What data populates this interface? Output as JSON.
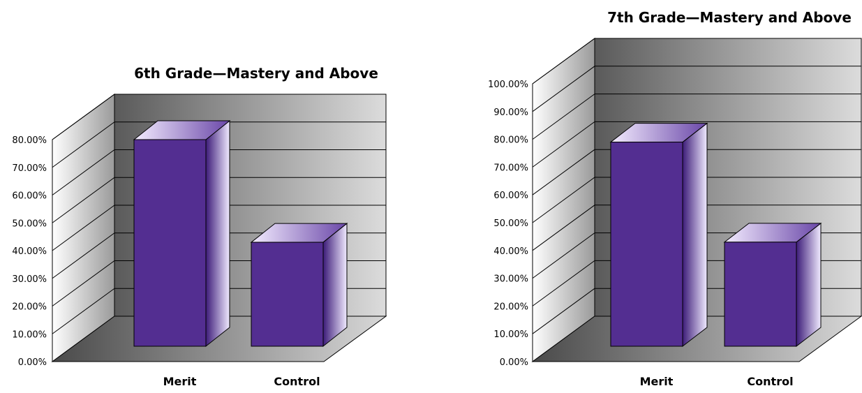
{
  "colors": {
    "bar_front": "#532e91",
    "bar_top_light": "#f3ecff",
    "bar_side_dark": "#3c1b78",
    "wall_dark": "#5a5a5a",
    "wall_light": "#dcdcdc",
    "text": "#000000"
  },
  "chart_data": [
    {
      "type": "bar",
      "style": "3d",
      "title": "6th Grade—Mastery and Above",
      "xlabel": "",
      "ylabel": "",
      "categories": [
        "Merit",
        "Control"
      ],
      "series": [
        {
          "values": [
            0.8,
            0.43
          ]
        }
      ],
      "ylim": [
        0,
        0.8
      ],
      "yticks": [
        "0.00%",
        "10.00%",
        "20.00%",
        "30.00%",
        "40.00%",
        "50.00%",
        "60.00%",
        "70.00%",
        "80.00%"
      ],
      "grid": true,
      "legend": "none"
    },
    {
      "type": "bar",
      "style": "3d",
      "title": "7th Grade—Mastery and Above",
      "xlabel": "",
      "ylabel": "",
      "categories": [
        "Merit",
        "Control"
      ],
      "series": [
        {
          "values": [
            0.79,
            0.43
          ]
        }
      ],
      "ylim": [
        0,
        1.0
      ],
      "yticks": [
        "0.00%",
        "10.00%",
        "20.00%",
        "30.00%",
        "40.00%",
        "50.00%",
        "60.00%",
        "70.00%",
        "80.00%",
        "90.00%",
        "100.00%"
      ],
      "grid": true,
      "legend": "none"
    }
  ]
}
